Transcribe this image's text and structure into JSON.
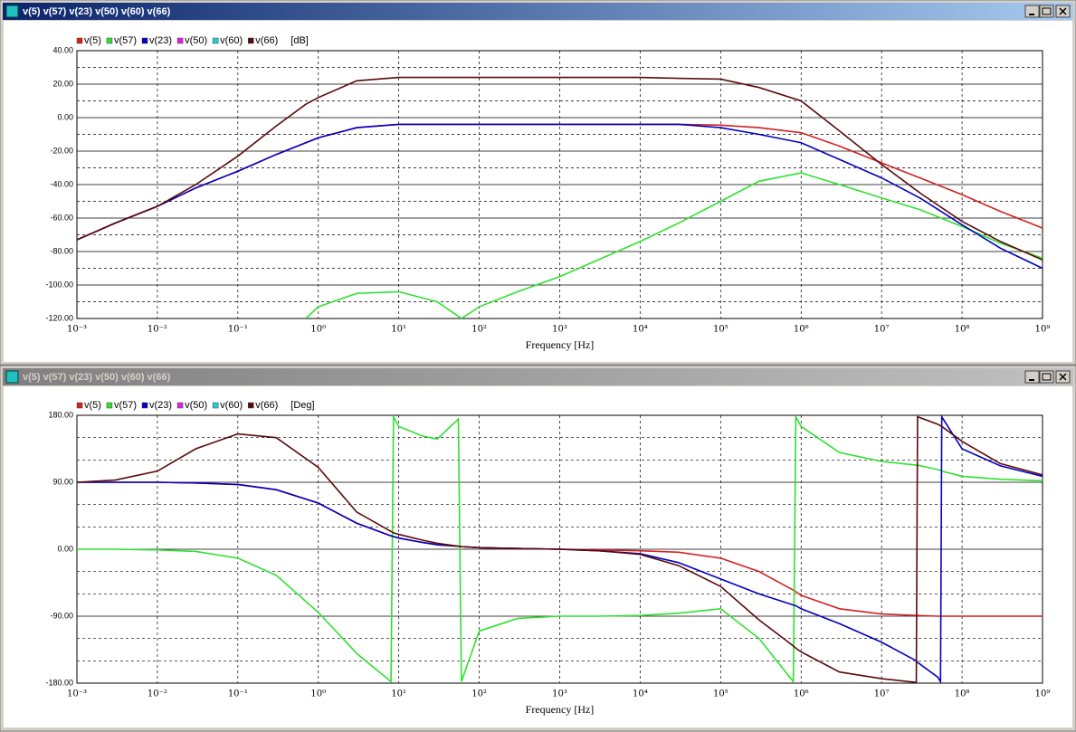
{
  "window_titles": [
    "v(5) v(57) v(23) v(50) v(60) v(66)",
    "v(5) v(57) v(23) v(50) v(60) v(66)"
  ],
  "chart_data": [
    {
      "type": "line",
      "xscale": "log",
      "grid": true,
      "x_label": "Frequency [Hz]",
      "y_label": "[dB]",
      "x": [
        0.001,
        0.003,
        0.01,
        0.03,
        0.1,
        0.3,
        0.7,
        1,
        3,
        10,
        30,
        60,
        100,
        300,
        1000,
        3000,
        10000,
        30000,
        100000,
        300000,
        1000000,
        3000000,
        10000000,
        30000000,
        100000000,
        300000000,
        1000000000
      ],
      "series": [
        {
          "name": "v(5)",
          "color": "#d42020",
          "values": [
            -73,
            -63,
            -53,
            -42,
            -32,
            -22,
            -15,
            -12,
            -6,
            -4,
            -4,
            -4,
            -4,
            -4,
            -4,
            -4,
            -4,
            -4,
            -4.5,
            -6,
            -9,
            -17,
            -27,
            -36,
            -46,
            -56,
            -66
          ]
        },
        {
          "name": "v(57)",
          "color": "#30e030",
          "values": [
            null,
            null,
            null,
            null,
            null,
            null,
            -120,
            -113,
            -105,
            -104,
            -110,
            -120,
            -113,
            -104,
            -95,
            -85,
            -74,
            -63,
            -50,
            -38,
            -33,
            -40,
            -48,
            -55,
            -65,
            -75,
            -84
          ]
        },
        {
          "name": "v(23)",
          "color": "#0000c0",
          "values": [
            -73,
            -63,
            -53,
            -42,
            -32,
            -22,
            -15,
            -12,
            -6,
            -4,
            -4,
            -4,
            -4,
            -4,
            -4,
            -4,
            -4,
            -4,
            -6,
            -10,
            -15,
            -25,
            -36,
            -48,
            -64,
            -78,
            -90
          ]
        },
        {
          "name": "v(50)",
          "color": "#e020e0",
          "values": [
            null,
            null,
            null,
            null,
            null,
            null,
            null,
            null,
            null,
            null,
            null,
            null,
            null,
            null,
            null,
            null,
            null,
            null,
            null,
            null,
            null,
            null,
            null,
            null,
            null,
            null,
            null
          ]
        },
        {
          "name": "v(60)",
          "color": "#20d0d0",
          "values": [
            null,
            null,
            null,
            null,
            null,
            null,
            null,
            null,
            null,
            null,
            null,
            null,
            null,
            null,
            null,
            null,
            null,
            null,
            null,
            null,
            null,
            null,
            null,
            null,
            null,
            null,
            null
          ]
        },
        {
          "name": "v(66)",
          "color": "#5a0a0a",
          "values": [
            -73,
            -63,
            -53,
            -40,
            -23,
            -5,
            8,
            12,
            22,
            24,
            24,
            24,
            24,
            24,
            24,
            24,
            24,
            23.5,
            23,
            18,
            10,
            -8,
            -28,
            -45,
            -62,
            -74,
            -85
          ]
        }
      ],
      "xlim": [
        0.001,
        1000000000
      ],
      "xticks": [
        {
          "value": 0.001,
          "label": "10⁻³"
        },
        {
          "value": 0.01,
          "label": "10⁻²"
        },
        {
          "value": 0.1,
          "label": "10⁻¹"
        },
        {
          "value": 1,
          "label": "10⁰"
        },
        {
          "value": 10,
          "label": "10¹"
        },
        {
          "value": 100,
          "label": "10²"
        },
        {
          "value": 1000,
          "label": "10³"
        },
        {
          "value": 10000,
          "label": "10⁴"
        },
        {
          "value": 100000,
          "label": "10⁵"
        },
        {
          "value": 1000000,
          "label": "10⁶"
        },
        {
          "value": 10000000,
          "label": "10⁷"
        },
        {
          "value": 100000000,
          "label": "10⁸"
        },
        {
          "value": 1000000000,
          "label": "10⁹"
        }
      ],
      "ylim": [
        -120,
        40
      ],
      "yticks": [
        {
          "value": 40,
          "label": "40.00"
        },
        {
          "value": 20,
          "label": "20.00"
        },
        {
          "value": 0,
          "label": "0.00"
        },
        {
          "value": -20,
          "label": "-20.00"
        },
        {
          "value": -40,
          "label": "-40.00"
        },
        {
          "value": -60,
          "label": "-60.00"
        },
        {
          "value": -80,
          "label": "-80.00"
        },
        {
          "value": -100,
          "label": "-100.00"
        },
        {
          "value": -120,
          "label": "-120.00"
        }
      ],
      "minor_yticks": [
        30,
        10,
        -10,
        -30,
        -50,
        -70,
        -90,
        -110
      ]
    },
    {
      "type": "line",
      "xscale": "log",
      "grid": true,
      "x_label": "Frequency [Hz]",
      "y_label": "[Deg]",
      "x": [
        0.001,
        0.003,
        0.01,
        0.03,
        0.1,
        0.3,
        1,
        3,
        8,
        8.6,
        10,
        20,
        30,
        55,
        60,
        100,
        300,
        1000,
        3000,
        10000,
        30000,
        100000,
        300000,
        800000,
        860000,
        1000000,
        3000000,
        10000000,
        27000000,
        28000000,
        50000000,
        54000000,
        56000000,
        100000000,
        300000000,
        1000000000
      ],
      "series": [
        {
          "name": "v(5)",
          "color": "#d42020",
          "values": [
            90,
            90,
            90,
            89,
            87,
            80,
            62,
            35,
            18,
            17,
            15,
            9,
            6,
            4,
            3.5,
            2,
            1,
            0,
            -1,
            -2,
            -4,
            -12,
            -30,
            -55,
            -57,
            -62,
            -80,
            -87,
            -89,
            -89,
            -90,
            -90,
            -90,
            -90,
            -90,
            -90
          ]
        },
        {
          "name": "v(57)",
          "color": "#30e030",
          "values": [
            0,
            0,
            -1,
            -3,
            -12,
            -35,
            -85,
            -140,
            -178,
            178,
            165,
            152,
            148,
            175,
            -178,
            -110,
            -93,
            -90,
            -90,
            -89,
            -86,
            -80,
            -120,
            -178,
            178,
            165,
            130,
            118,
            113,
            113,
            107,
            106,
            105,
            98,
            94,
            92
          ]
        },
        {
          "name": "v(23)",
          "color": "#0000c0",
          "values": [
            90,
            90,
            90,
            89,
            87,
            80,
            62,
            35,
            18,
            17,
            15,
            9,
            6,
            4,
            3.5,
            2,
            1,
            0,
            -2,
            -6,
            -18,
            -40,
            -60,
            -75,
            -76,
            -80,
            -100,
            -125,
            -150,
            -152,
            -172,
            -178,
            178,
            135,
            112,
            98
          ]
        },
        {
          "name": "v(50)",
          "color": "#e020e0",
          "values": [
            null,
            null,
            null,
            null,
            null,
            null,
            null,
            null,
            null,
            null,
            null,
            null,
            null,
            null,
            null,
            null,
            null,
            null,
            null,
            null,
            null,
            null,
            null,
            null,
            null,
            null,
            null,
            null,
            null,
            null,
            null,
            null,
            null,
            null,
            null,
            null
          ]
        },
        {
          "name": "v(60)",
          "color": "#20d0d0",
          "values": [
            null,
            null,
            null,
            null,
            null,
            null,
            null,
            null,
            null,
            null,
            null,
            null,
            null,
            null,
            null,
            null,
            null,
            null,
            null,
            null,
            null,
            null,
            null,
            null,
            null,
            null,
            null,
            null,
            null,
            null,
            null,
            null,
            null,
            null,
            null,
            null
          ]
        },
        {
          "name": "v(66)",
          "color": "#5a0a0a",
          "values": [
            90,
            93,
            105,
            135,
            155,
            150,
            110,
            50,
            24,
            22,
            20,
            12,
            8,
            4,
            3.5,
            2,
            1,
            0,
            -2,
            -7,
            -22,
            -50,
            -95,
            -130,
            -133,
            -138,
            -165,
            -174,
            -179,
            178,
            168,
            166,
            165,
            145,
            115,
            100
          ]
        }
      ],
      "xlim": [
        0.001,
        1000000000
      ],
      "xticks": [
        {
          "value": 0.001,
          "label": "10⁻³"
        },
        {
          "value": 0.01,
          "label": "10⁻²"
        },
        {
          "value": 0.1,
          "label": "10⁻¹"
        },
        {
          "value": 1,
          "label": "10⁰"
        },
        {
          "value": 10,
          "label": "10¹"
        },
        {
          "value": 100,
          "label": "10²"
        },
        {
          "value": 1000,
          "label": "10³"
        },
        {
          "value": 10000,
          "label": "10⁴"
        },
        {
          "value": 100000,
          "label": "10⁵"
        },
        {
          "value": 1000000,
          "label": "10⁶"
        },
        {
          "value": 10000000,
          "label": "10⁷"
        },
        {
          "value": 100000000,
          "label": "10⁸"
        },
        {
          "value": 1000000000,
          "label": "10⁹"
        }
      ],
      "ylim": [
        -180,
        180
      ],
      "yticks": [
        {
          "value": 180,
          "label": "180.00"
        },
        {
          "value": 90,
          "label": "90.00"
        },
        {
          "value": 0,
          "label": "0.00"
        },
        {
          "value": -90,
          "label": "-90.00"
        },
        {
          "value": -180,
          "label": "-180.00"
        }
      ],
      "minor_yticks": [
        150,
        120,
        60,
        30,
        -30,
        -60,
        -120,
        -150
      ]
    }
  ]
}
